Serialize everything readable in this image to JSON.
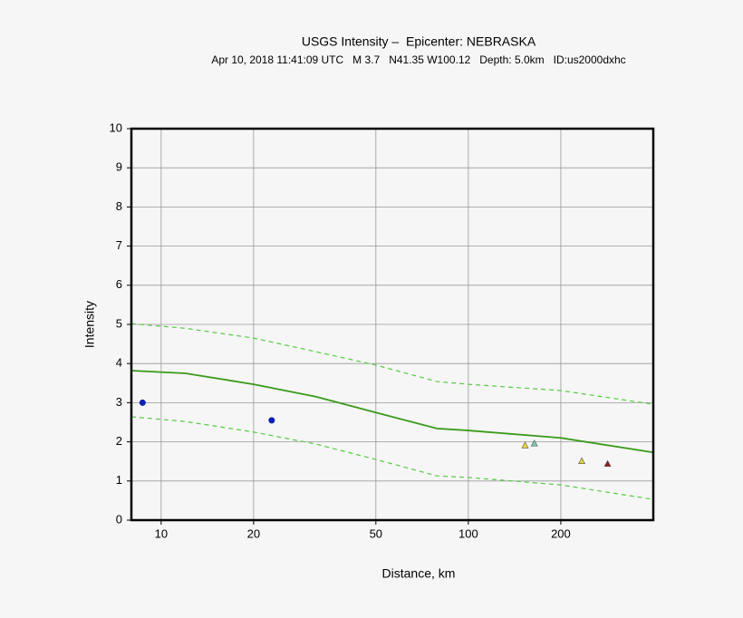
{
  "chart_data": {
    "type": "line",
    "title": "USGS Intensity –  Epicenter: NEBRASKA",
    "subtitle": "Apr 10, 2018 11:41:09 UTC   M 3.7   N41.35 W100.12   Depth: 5.0km   ID:us2000dxhc",
    "x_label": "Distance, km",
    "y_label": "Intensity",
    "x_log": true,
    "grid": true,
    "xlim": [
      8,
      400
    ],
    "ylim": [
      0,
      10
    ],
    "xticks": [
      10,
      20,
      50,
      100,
      200
    ],
    "yticks": [
      0,
      1,
      2,
      3,
      4,
      5,
      6,
      7,
      8,
      9,
      10
    ],
    "series": [
      {
        "type": "line",
        "color": "#3a9a1a",
        "dash": false,
        "x": [
          8,
          12,
          20,
          32,
          50,
          79,
          100,
          200,
          400
        ],
        "values": [
          3.82,
          3.75,
          3.47,
          3.15,
          2.75,
          2.34,
          2.29,
          2.1,
          1.73
        ]
      },
      {
        "type": "line",
        "color": "#4fcf3a",
        "dash": true,
        "x": [
          8,
          12,
          20,
          32,
          50,
          79,
          100,
          200,
          400
        ],
        "values": [
          5.02,
          4.9,
          4.65,
          4.3,
          3.96,
          3.54,
          3.47,
          3.31,
          2.96
        ]
      },
      {
        "type": "line",
        "color": "#4fcf3a",
        "dash": true,
        "x": [
          8,
          12,
          20,
          32,
          50,
          79,
          100,
          200,
          400
        ],
        "values": [
          2.64,
          2.52,
          2.25,
          1.94,
          1.55,
          1.13,
          1.09,
          0.9,
          0.53
        ]
      },
      {
        "type": "scatter",
        "marker": "circle",
        "color": "#0a1fb0",
        "x": [
          8.7,
          22.9
        ],
        "values": [
          3.0,
          2.55
        ]
      },
      {
        "type": "scatter",
        "marker": "triangle",
        "color": "#e8d43a",
        "x": [
          153
        ],
        "values": [
          1.9
        ]
      },
      {
        "type": "scatter",
        "marker": "triangle",
        "color": "#6fcfa0",
        "x": [
          164
        ],
        "values": [
          1.95
        ]
      },
      {
        "type": "scatter",
        "marker": "triangle",
        "color": "#e8d43a",
        "x": [
          234
        ],
        "values": [
          1.5
        ]
      },
      {
        "type": "scatter",
        "marker": "triangle",
        "color": "#9a1a1a",
        "x": [
          284
        ],
        "values": [
          1.43
        ]
      }
    ]
  }
}
